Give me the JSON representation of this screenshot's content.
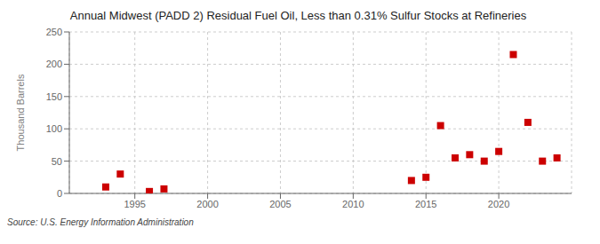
{
  "chart_data": {
    "type": "scatter",
    "title": "Annual Midwest (PADD 2) Residual Fuel Oil, Less than 0.31% Sulfur Stocks at Refineries",
    "ylabel": "Thousand Barrels",
    "annotations": [
      "Source: U.S. Energy Information Administration"
    ],
    "x": [
      1993,
      1994,
      1996,
      1997,
      2014,
      2015,
      2016,
      2017,
      2018,
      2019,
      2020,
      2021,
      2022,
      2023,
      2024
    ],
    "values": [
      10,
      30,
      3,
      7,
      20,
      25,
      105,
      55,
      60,
      50,
      65,
      215,
      110,
      50,
      55
    ],
    "color": "#cc0000",
    "marker": "square",
    "xlim": [
      1990.5,
      2025
    ],
    "xticks": [
      1995,
      2000,
      2005,
      2010,
      2015,
      2020
    ],
    "ylim": [
      0,
      250
    ],
    "yticks": [
      0,
      50,
      100,
      150,
      200,
      250
    ],
    "grid": true
  }
}
